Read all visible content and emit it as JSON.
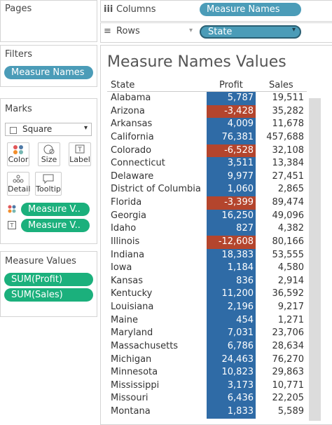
{
  "shelves": {
    "pages": "Pages",
    "columns": {
      "label": "Columns",
      "pill": "Measure Names"
    },
    "rows": {
      "label": "Rows",
      "pill": "State"
    }
  },
  "filters": {
    "title": "Filters",
    "pills": [
      "Measure Names"
    ]
  },
  "marks": {
    "title": "Marks",
    "mark_type": "Square",
    "buttons": [
      "Color",
      "Size",
      "Label",
      "Detail",
      "Tooltip"
    ],
    "pills": [
      "Measure V..",
      "Measure V.."
    ]
  },
  "measure_values": {
    "title": "Measure Values",
    "pills": [
      "SUM(Profit)",
      "SUM(Sales)"
    ]
  },
  "view": {
    "title": "Measure Names Values",
    "columns": [
      "State",
      "Profit",
      "Sales"
    ],
    "positive_color": "#2f6ba6",
    "negative_color": "#b4452d",
    "rows": [
      [
        "Alabama",
        "5,787",
        "19,511"
      ],
      [
        "Arizona",
        "-3,428",
        "35,282"
      ],
      [
        "Arkansas",
        "4,009",
        "11,678"
      ],
      [
        "California",
        "76,381",
        "457,688"
      ],
      [
        "Colorado",
        "-6,528",
        "32,108"
      ],
      [
        "Connecticut",
        "3,511",
        "13,384"
      ],
      [
        "Delaware",
        "9,977",
        "27,451"
      ],
      [
        "District of Columbia",
        "1,060",
        "2,865"
      ],
      [
        "Florida",
        "-3,399",
        "89,474"
      ],
      [
        "Georgia",
        "16,250",
        "49,096"
      ],
      [
        "Idaho",
        "827",
        "4,382"
      ],
      [
        "Illinois",
        "-12,608",
        "80,166"
      ],
      [
        "Indiana",
        "18,383",
        "53,555"
      ],
      [
        "Iowa",
        "1,184",
        "4,580"
      ],
      [
        "Kansas",
        "836",
        "2,914"
      ],
      [
        "Kentucky",
        "11,200",
        "36,592"
      ],
      [
        "Louisiana",
        "2,196",
        "9,217"
      ],
      [
        "Maine",
        "454",
        "1,271"
      ],
      [
        "Maryland",
        "7,031",
        "23,706"
      ],
      [
        "Massachusetts",
        "6,786",
        "28,634"
      ],
      [
        "Michigan",
        "24,463",
        "76,270"
      ],
      [
        "Minnesota",
        "10,823",
        "29,863"
      ],
      [
        "Mississippi",
        "3,173",
        "10,771"
      ],
      [
        "Missouri",
        "6,436",
        "22,205"
      ],
      [
        "Montana",
        "1,833",
        "5,589"
      ]
    ]
  }
}
